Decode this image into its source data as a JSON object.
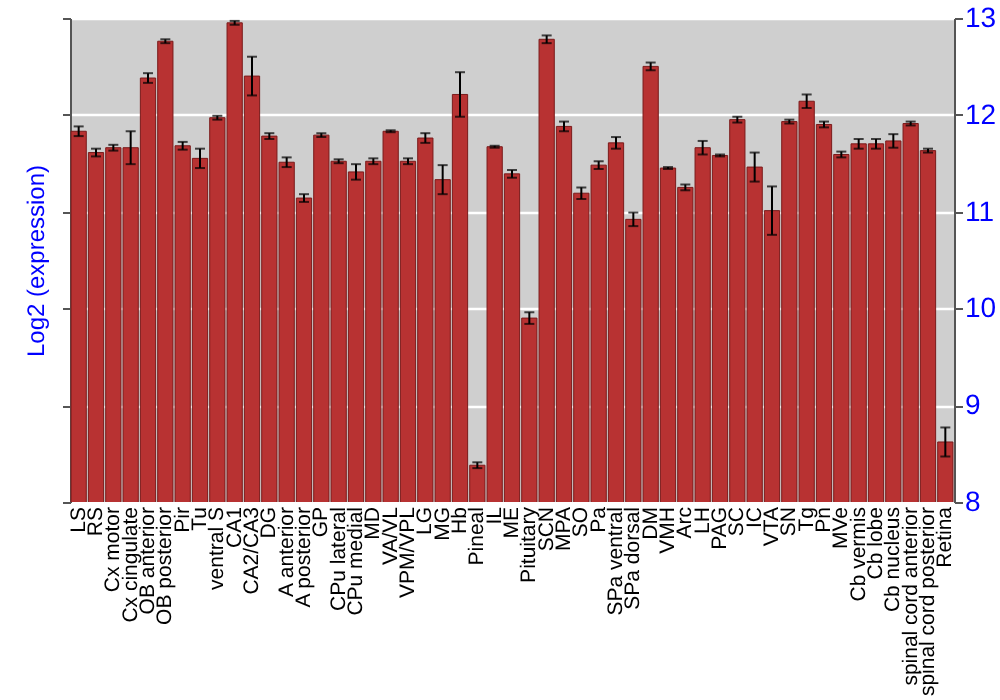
{
  "chart_data": {
    "type": "bar",
    "ylabel": "Log2 (expression)",
    "categories": [
      "LS",
      "RS",
      "Cx motor",
      "Cx cingulate",
      "OB anterior",
      "OB posterior",
      "Pir",
      "Tu",
      "ventral S",
      "CA1",
      "CA2/CA3",
      "DG",
      "A anterior",
      "A posterior",
      "GP",
      "CPu lateral",
      "CPu medial",
      "MD",
      "VA/VL",
      "VPM/VPL",
      "LG",
      "MG",
      "Hb",
      "Pineal",
      "IL",
      "ME",
      "Pituitary",
      "SCN",
      "MPA",
      "SO",
      "Pa",
      "SPa ventral",
      "SPa dorsal",
      "DM",
      "VMH",
      "Arc",
      "LH",
      "PAG",
      "SC",
      "IC",
      "VTA",
      "SN",
      "Tg",
      "Pn",
      "MVe",
      "Cb vermis",
      "Cb lobe",
      "Cb nucleus",
      "spinal cord anterior",
      "spinal cord posterior",
      "Retina"
    ],
    "values": [
      11.83,
      11.61,
      11.66,
      11.66,
      12.38,
      12.76,
      11.68,
      11.55,
      11.97,
      12.95,
      12.4,
      11.78,
      11.51,
      11.14,
      11.79,
      11.52,
      11.41,
      11.52,
      11.83,
      11.52,
      11.76,
      11.33,
      12.21,
      8.38,
      11.67,
      11.39,
      9.9,
      12.78,
      11.88,
      11.19,
      11.48,
      11.71,
      10.92,
      12.5,
      11.45,
      11.25,
      11.66,
      11.58,
      11.95,
      11.46,
      11.01,
      11.93,
      12.14,
      11.9,
      11.59,
      11.7,
      11.7,
      11.73,
      11.91,
      11.63,
      8.62
    ],
    "errors": [
      0.05,
      0.04,
      0.03,
      0.17,
      0.05,
      0.02,
      0.04,
      0.1,
      0.02,
      0.02,
      0.2,
      0.03,
      0.05,
      0.04,
      0.02,
      0.02,
      0.08,
      0.03,
      0.01,
      0.03,
      0.05,
      0.15,
      0.23,
      0.03,
      0.01,
      0.04,
      0.06,
      0.04,
      0.05,
      0.06,
      0.04,
      0.06,
      0.07,
      0.04,
      0.01,
      0.03,
      0.07,
      0.01,
      0.03,
      0.15,
      0.25,
      0.02,
      0.07,
      0.03,
      0.03,
      0.05,
      0.05,
      0.07,
      0.02,
      0.02,
      0.15
    ],
    "color": "#b83232",
    "ylim": [
      8,
      13
    ],
    "yticks": [
      8,
      9,
      10,
      11,
      12,
      13
    ],
    "grid": true
  }
}
